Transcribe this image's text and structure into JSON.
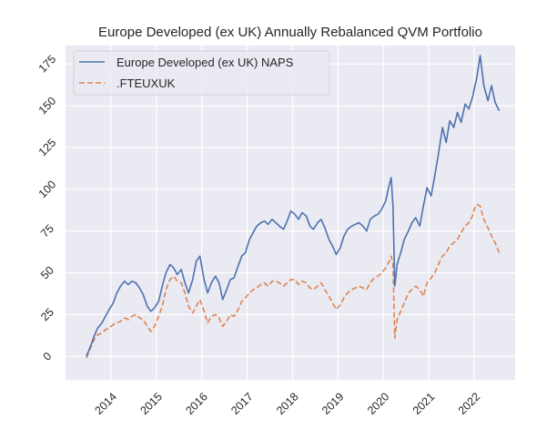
{
  "chart_data": {
    "type": "line",
    "title": "Europe Developed (ex UK) Annually Rebalanced QVM Portfolio",
    "xlabel": "",
    "ylabel": "",
    "xlim": [
      2013.0,
      2022.9
    ],
    "ylim": [
      -14,
      186
    ],
    "grid": true,
    "legend_position": "top-left",
    "x_ticks": [
      {
        "value": 2014,
        "label": "2014"
      },
      {
        "value": 2015,
        "label": "2015"
      },
      {
        "value": 2016,
        "label": "2016"
      },
      {
        "value": 2017,
        "label": "2017"
      },
      {
        "value": 2018,
        "label": "2018"
      },
      {
        "value": 2019,
        "label": "2019"
      },
      {
        "value": 2020,
        "label": "2020"
      },
      {
        "value": 2021,
        "label": "2021"
      },
      {
        "value": 2022,
        "label": "2022"
      }
    ],
    "y_ticks": [
      {
        "value": 0,
        "label": "0"
      },
      {
        "value": 25,
        "label": "25"
      },
      {
        "value": 50,
        "label": "50"
      },
      {
        "value": 75,
        "label": "75"
      },
      {
        "value": 100,
        "label": "100"
      },
      {
        "value": 125,
        "label": "125"
      },
      {
        "value": 150,
        "label": "150"
      },
      {
        "value": 175,
        "label": "175"
      }
    ],
    "x": [
      2013.46,
      2013.55,
      2013.63,
      2013.71,
      2013.8,
      2013.88,
      2013.96,
      2014.05,
      2014.13,
      2014.21,
      2014.3,
      2014.38,
      2014.46,
      2014.55,
      2014.63,
      2014.71,
      2014.8,
      2014.88,
      2014.96,
      2015.05,
      2015.13,
      2015.21,
      2015.3,
      2015.38,
      2015.46,
      2015.55,
      2015.63,
      2015.71,
      2015.8,
      2015.88,
      2015.96,
      2016.05,
      2016.13,
      2016.21,
      2016.3,
      2016.38,
      2016.46,
      2016.55,
      2016.63,
      2016.71,
      2016.8,
      2016.88,
      2016.96,
      2017.05,
      2017.13,
      2017.21,
      2017.3,
      2017.38,
      2017.46,
      2017.55,
      2017.63,
      2017.71,
      2017.8,
      2017.88,
      2017.96,
      2018.05,
      2018.13,
      2018.21,
      2018.3,
      2018.38,
      2018.46,
      2018.55,
      2018.63,
      2018.71,
      2018.8,
      2018.88,
      2018.96,
      2019.05,
      2019.13,
      2019.21,
      2019.3,
      2019.38,
      2019.46,
      2019.55,
      2019.63,
      2019.71,
      2019.8,
      2019.88,
      2019.96,
      2020.05,
      2020.13,
      2020.17,
      2020.21,
      2020.25,
      2020.3,
      2020.38,
      2020.46,
      2020.55,
      2020.63,
      2020.71,
      2020.8,
      2020.88,
      2020.96,
      2021.05,
      2021.13,
      2021.21,
      2021.3,
      2021.38,
      2021.46,
      2021.55,
      2021.63,
      2021.71,
      2021.8,
      2021.88,
      2021.96,
      2022.0,
      2022.05,
      2022.13,
      2022.21,
      2022.3,
      2022.38,
      2022.46,
      2022.55
    ],
    "series": [
      {
        "name": "Europe Developed (ex UK) NAPS",
        "color": "#4c72b0",
        "style": "solid",
        "values": [
          0,
          6,
          12,
          17,
          20,
          24,
          28,
          32,
          38,
          42,
          45,
          43,
          45,
          44,
          41,
          37,
          30,
          27,
          29,
          33,
          42,
          50,
          55,
          53,
          49,
          52,
          44,
          38,
          46,
          57,
          60,
          46,
          38,
          44,
          48,
          44,
          34,
          40,
          46,
          47,
          54,
          60,
          62,
          70,
          74,
          78,
          80,
          81,
          79,
          82,
          80,
          78,
          76,
          81,
          87,
          85,
          82,
          86,
          84,
          78,
          76,
          80,
          82,
          77,
          70,
          66,
          61,
          65,
          72,
          76,
          78,
          79,
          80,
          78,
          75,
          82,
          84,
          85,
          88,
          93,
          103,
          107,
          90,
          42,
          55,
          62,
          70,
          75,
          80,
          83,
          78,
          90,
          101,
          96,
          108,
          121,
          137,
          128,
          141,
          137,
          146,
          140,
          151,
          148,
          155,
          160,
          166,
          180,
          162,
          153,
          162,
          152,
          147,
          149,
          141
        ]
      },
      {
        "name": ".FTEUXUK",
        "color": "#dd8452",
        "style": "dashed",
        "values": [
          -1,
          5,
          10,
          13,
          14,
          16,
          17,
          19,
          20,
          21,
          23,
          22,
          24,
          25,
          23,
          22,
          18,
          15,
          18,
          24,
          30,
          40,
          46,
          48,
          45,
          44,
          38,
          30,
          26,
          30,
          34,
          27,
          20,
          24,
          25,
          23,
          18,
          21,
          25,
          24,
          28,
          33,
          35,
          38,
          40,
          41,
          43,
          44,
          42,
          45,
          45,
          44,
          42,
          44,
          46,
          46,
          43,
          45,
          44,
          41,
          40,
          42,
          44,
          40,
          36,
          32,
          28,
          31,
          35,
          38,
          40,
          41,
          42,
          41,
          40,
          44,
          47,
          48,
          50,
          53,
          57,
          60,
          55,
          11,
          22,
          27,
          32,
          38,
          40,
          42,
          40,
          36,
          44,
          47,
          50,
          55,
          60,
          62,
          66,
          68,
          70,
          74,
          78,
          80,
          84,
          88,
          91,
          90,
          82,
          77,
          72,
          68,
          62,
          58,
          56
        ]
      }
    ]
  }
}
